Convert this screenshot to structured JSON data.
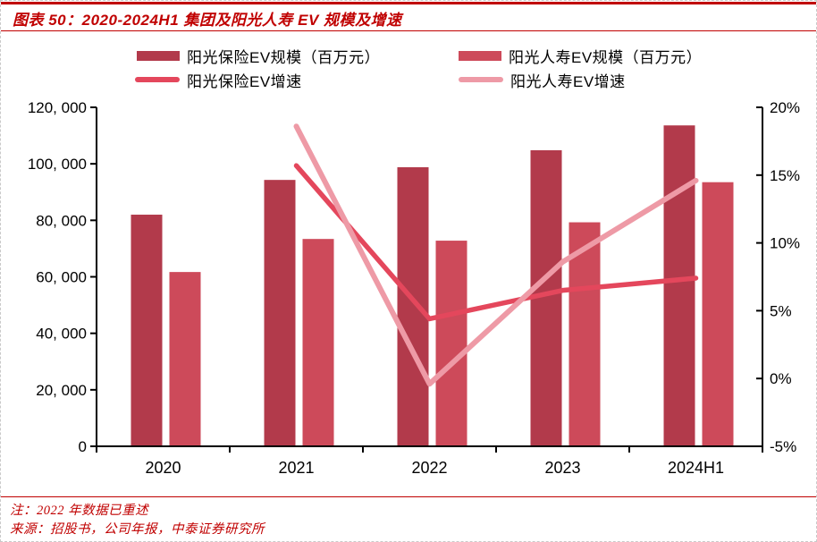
{
  "header": {
    "title": "图表 50：2020-2024H1 集团及阳光人寿 EV 规模及增速"
  },
  "footer": {
    "note": "注：2022 年数据已重述",
    "source": "来源：招股书，公司年报，中泰证券研究所"
  },
  "colors": {
    "accent_red": "#C00000",
    "axis_black": "#000000"
  },
  "chart_data": {
    "type": "bar",
    "subtype": "bar-line-combo-dual-axis",
    "categories": [
      "2020",
      "2021",
      "2022",
      "2023",
      "2024H1"
    ],
    "bar_series": [
      {
        "name": "阳光保险EV规模（百万元）",
        "color": "#B23A4B",
        "axis": "left",
        "values": [
          82000,
          94300,
          98800,
          104800,
          113600
        ]
      },
      {
        "name": "阳光人寿EV规模（百万元）",
        "color": "#CD4A5A",
        "axis": "left",
        "values": [
          61700,
          73400,
          72800,
          79300,
          93500
        ]
      }
    ],
    "line_series": [
      {
        "name": "阳光保险EV增速",
        "color": "#E4475C",
        "axis": "right",
        "values": [
          null,
          15.7,
          4.4,
          6.5,
          7.4
        ]
      },
      {
        "name": "阳光人寿EV增速",
        "color": "#EE9AA6",
        "axis": "right",
        "values": [
          null,
          18.6,
          -0.4,
          8.6,
          14.6
        ]
      }
    ],
    "left_axis": {
      "min": 0,
      "max": 120000,
      "step": 20000,
      "tick_labels": [
        "0",
        "20, 000",
        "40, 000",
        "60, 000",
        "80, 000",
        "100, 000",
        "120, 000"
      ]
    },
    "right_axis": {
      "min": -5,
      "max": 20,
      "step": 5,
      "tick_labels": [
        "-5%",
        "0%",
        "5%",
        "10%",
        "15%",
        "20%"
      ]
    },
    "grid": false,
    "legend_position": "top"
  }
}
